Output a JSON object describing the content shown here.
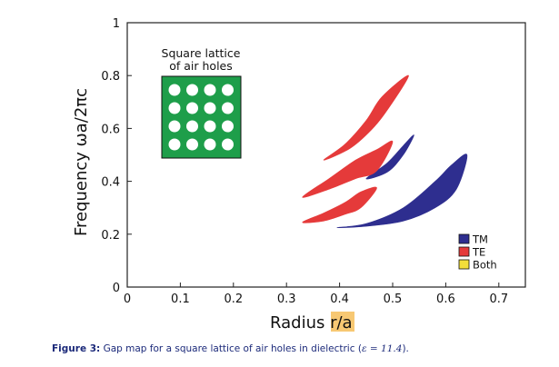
{
  "chart_data": {
    "type": "area",
    "xlabel_prefix": "Radius ",
    "xlabel_var": "r/a",
    "ylabel": "Frequency ωa/2πc",
    "xlim": [
      0,
      0.75
    ],
    "ylim": [
      0,
      1
    ],
    "xticks": [
      "0",
      "0.1",
      "0.2",
      "0.3",
      "0.4",
      "0.5",
      "0.6",
      "0.7"
    ],
    "yticks": [
      "0",
      "0.2",
      "0.4",
      "0.6",
      "0.8",
      "1"
    ],
    "legend": {
      "placement": "bottom-right",
      "items": [
        {
          "label": "TM",
          "color": "#2e2e8f"
        },
        {
          "label": "TE",
          "color": "#e53a3a"
        },
        {
          "label": "Both",
          "color": "#f3de3a"
        }
      ]
    },
    "inset": {
      "title_line1": "Square lattice",
      "title_line2": "of air holes",
      "rows": 4,
      "cols": 4,
      "background": "#1e9e4a",
      "hole_color": "#ffffff"
    },
    "series": [
      {
        "name": "TM",
        "color": "#2e2e8f",
        "regions": [
          {
            "upper": [
              [
                0.395,
                0.225
              ],
              [
                0.45,
                0.24
              ],
              [
                0.52,
                0.3
              ],
              [
                0.58,
                0.4
              ],
              [
                0.61,
                0.46
              ],
              [
                0.64,
                0.5
              ]
            ],
            "lower": [
              [
                0.395,
                0.225
              ],
              [
                0.45,
                0.23
              ],
              [
                0.52,
                0.25
              ],
              [
                0.58,
                0.3
              ],
              [
                0.62,
                0.37
              ],
              [
                0.64,
                0.5
              ]
            ]
          },
          {
            "upper": [
              [
                0.45,
                0.41
              ],
              [
                0.49,
                0.47
              ],
              [
                0.52,
                0.535
              ],
              [
                0.54,
                0.575
              ]
            ],
            "lower": [
              [
                0.45,
                0.41
              ],
              [
                0.49,
                0.435
              ],
              [
                0.52,
                0.5
              ],
              [
                0.54,
                0.575
              ]
            ]
          }
        ]
      },
      {
        "name": "TE",
        "color": "#e53a3a",
        "regions": [
          {
            "upper": [
              [
                0.37,
                0.48
              ],
              [
                0.41,
                0.54
              ],
              [
                0.45,
                0.63
              ],
              [
                0.48,
                0.72
              ],
              [
                0.53,
                0.8
              ]
            ],
            "lower": [
              [
                0.37,
                0.48
              ],
              [
                0.42,
                0.525
              ],
              [
                0.46,
                0.595
              ],
              [
                0.49,
                0.67
              ],
              [
                0.53,
                0.8
              ]
            ]
          },
          {
            "upper": [
              [
                0.33,
                0.34
              ],
              [
                0.38,
                0.41
              ],
              [
                0.43,
                0.48
              ],
              [
                0.47,
                0.52
              ],
              [
                0.5,
                0.55
              ]
            ],
            "lower": [
              [
                0.33,
                0.34
              ],
              [
                0.38,
                0.37
              ],
              [
                0.43,
                0.41
              ],
              [
                0.47,
                0.44
              ],
              [
                0.5,
                0.55
              ]
            ]
          },
          {
            "upper": [
              [
                0.33,
                0.245
              ],
              [
                0.37,
                0.28
              ],
              [
                0.41,
                0.32
              ],
              [
                0.44,
                0.36
              ],
              [
                0.47,
                0.375
              ]
            ],
            "lower": [
              [
                0.33,
                0.245
              ],
              [
                0.37,
                0.25
              ],
              [
                0.41,
                0.275
              ],
              [
                0.44,
                0.3
              ],
              [
                0.47,
                0.375
              ]
            ]
          }
        ]
      }
    ]
  },
  "caption": {
    "label": "Figure 3:",
    "text": " Gap map for a square lattice of air holes in dielectric (",
    "epsilon": "ε = 11.4",
    "end": ")."
  }
}
